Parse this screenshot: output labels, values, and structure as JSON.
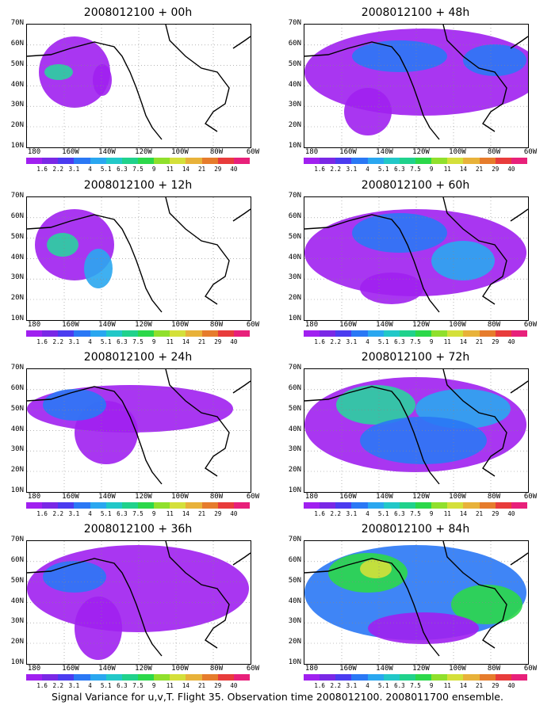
{
  "panels": [
    {
      "title": "2008012100 + 00h"
    },
    {
      "title": "2008012100 + 48h"
    },
    {
      "title": "2008012100 + 12h"
    },
    {
      "title": "2008012100 + 60h"
    },
    {
      "title": "2008012100 + 24h"
    },
    {
      "title": "2008012100 + 72h"
    },
    {
      "title": "2008012100 + 36h"
    },
    {
      "title": "2008012100 + 84h"
    }
  ],
  "lat_labels": [
    "70N",
    "60N",
    "50N",
    "40N",
    "30N",
    "20N",
    "10N"
  ],
  "lon_labels": [
    "180",
    "160W",
    "140W",
    "120W",
    "100W",
    "80W",
    "60W"
  ],
  "colorbar": {
    "labels": [
      "1.6",
      "2.2",
      "3.1",
      "4",
      "5.1",
      "6.3",
      "7.5",
      "9",
      "11",
      "14",
      "21",
      "29",
      "40"
    ],
    "colors": [
      "#a020f0",
      "#7a28e6",
      "#4b3cf0",
      "#2a78f5",
      "#2aa7f0",
      "#22c8c8",
      "#20d28c",
      "#2cd84a",
      "#90e02c",
      "#d4e03a",
      "#e8b23a",
      "#e67c2c",
      "#e83c3c",
      "#e8207a"
    ]
  },
  "caption": "Signal Variance for u,v,T. Flight 35. Observation time 2008012100. 2008011700 ensemble."
}
